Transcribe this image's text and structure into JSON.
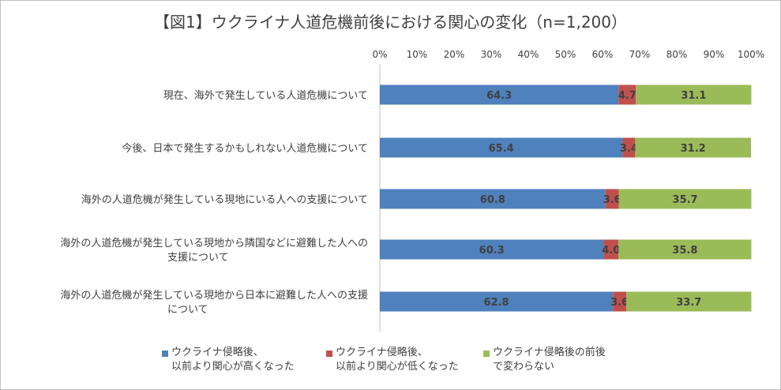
{
  "chart_data": {
    "type": "bar",
    "orientation": "horizontal",
    "stacked": true,
    "title": "【図1】ウクライナ人道危機前後における関心の変化（n=1,200）",
    "categories": [
      "現在、海外で発生している人道危機について",
      "今後、日本で発生するかもしれない人道危機について",
      "海外の人道危機が発生している現地にいる人への支援について",
      "海外の人道危機が発生している現地から隣国などに避難した人への\n支援について",
      "海外の人道危機が発生している現地から日本に避難した人への支援\nについて"
    ],
    "series": [
      {
        "name": "ウクライナ侵略後、\n以前より関心が高くなった",
        "color": "#4f81bd",
        "values": [
          64.3,
          65.4,
          60.8,
          60.3,
          62.8
        ]
      },
      {
        "name": "ウクライナ侵略後、\n以前より関心が低くなった",
        "color": "#c0504d",
        "values": [
          4.7,
          3.4,
          3.6,
          4.0,
          3.6
        ]
      },
      {
        "name": "ウクライナ侵略後の前後\nで変わらない",
        "color": "#9bbb59",
        "values": [
          31.1,
          31.2,
          35.7,
          35.8,
          33.7
        ]
      }
    ],
    "x_ticks": [
      "0%",
      "10%",
      "20%",
      "30%",
      "40%",
      "50%",
      "60%",
      "70%",
      "80%",
      "90%",
      "100%"
    ],
    "xlim": [
      0,
      100
    ],
    "tick_position": "top",
    "grid": false,
    "legend_position": "bottom"
  }
}
